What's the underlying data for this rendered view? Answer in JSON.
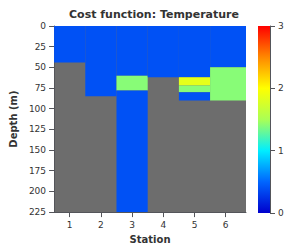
{
  "chart_data": {
    "type": "section",
    "title": "Cost function: Temperature",
    "xlabel": "Station",
    "ylabel": "Depth (m)",
    "xlim": [
      0.5,
      6.65
    ],
    "ylim": [
      225,
      0
    ],
    "xticks": [
      1,
      2,
      3,
      4,
      5,
      6
    ],
    "yticks": [
      0,
      25,
      50,
      75,
      100,
      125,
      150,
      175,
      200,
      225
    ],
    "grid": false,
    "nodata_color": "#6d6d6d",
    "colorscale": [
      [
        0.0,
        "#0000cd"
      ],
      [
        0.167,
        "#0066ff"
      ],
      [
        0.333,
        "#00eeff"
      ],
      [
        0.5,
        "#aaff55"
      ],
      [
        0.667,
        "#ffff00"
      ],
      [
        0.833,
        "#ff8800"
      ],
      [
        1.0,
        "#ff0000"
      ]
    ],
    "colorbar_range": [
      0,
      3
    ],
    "colorbar_ticks": [
      0,
      1,
      2,
      3
    ],
    "stations": [
      {
        "x_start": 0.5,
        "x_end": 1.5,
        "layers": [
          {
            "depth_top": 0,
            "depth_bot": 44,
            "value": 0.4
          }
        ]
      },
      {
        "x_start": 1.5,
        "x_end": 2.5,
        "layers": [
          {
            "depth_top": 0,
            "depth_bot": 85,
            "value": 0.4
          }
        ]
      },
      {
        "x_start": 2.5,
        "x_end": 3.5,
        "layers": [
          {
            "depth_top": 0,
            "depth_bot": 60,
            "value": 0.4
          },
          {
            "depth_top": 60,
            "depth_bot": 78,
            "value": 1.4
          },
          {
            "depth_top": 78,
            "depth_bot": 225,
            "value": 0.4
          }
        ]
      },
      {
        "x_start": 3.5,
        "x_end": 4.5,
        "layers": [
          {
            "depth_top": 0,
            "depth_bot": 62,
            "value": 0.4
          }
        ]
      },
      {
        "x_start": 4.5,
        "x_end": 5.5,
        "layers": [
          {
            "depth_top": 0,
            "depth_bot": 62,
            "value": 0.4
          },
          {
            "depth_top": 62,
            "depth_bot": 72,
            "value": 1.85
          },
          {
            "depth_top": 72,
            "depth_bot": 80,
            "value": 1.4
          },
          {
            "depth_top": 80,
            "depth_bot": 90,
            "value": 0.4
          }
        ]
      },
      {
        "x_start": 5.5,
        "x_end": 6.65,
        "layers": [
          {
            "depth_top": 0,
            "depth_bot": 50,
            "value": 0.4
          },
          {
            "depth_top": 50,
            "depth_bot": 90,
            "value": 1.4
          }
        ]
      }
    ]
  }
}
